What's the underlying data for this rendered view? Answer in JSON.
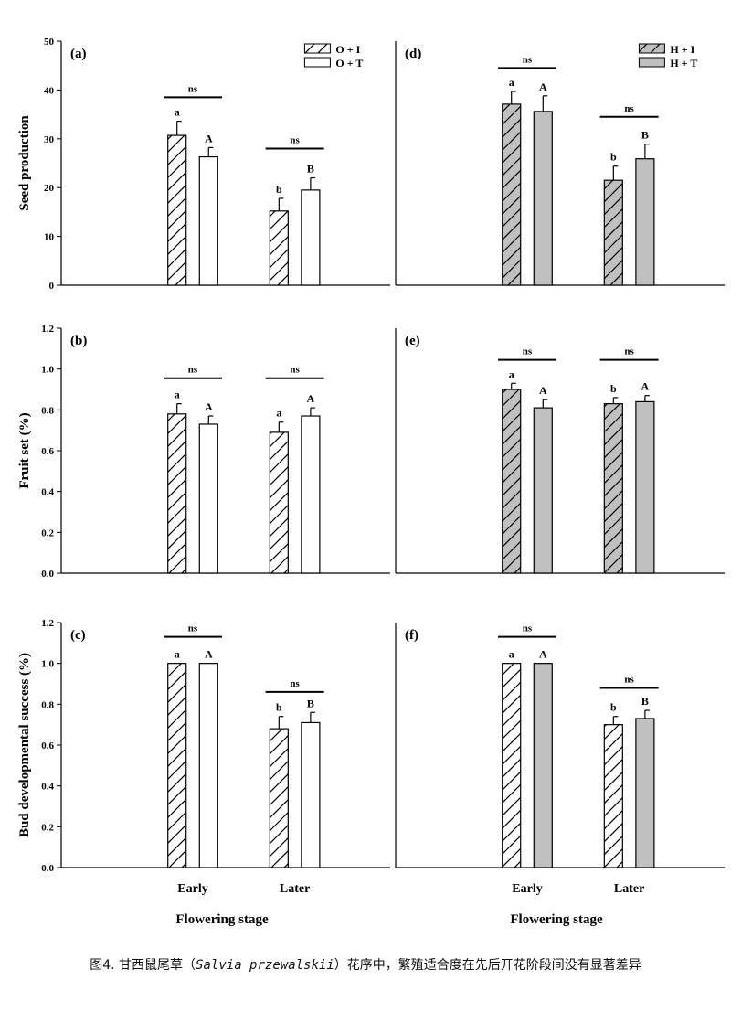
{
  "colors": {
    "gray_fill": "#c0c0c0",
    "white_fill": "#ffffff",
    "ink": "#000000"
  },
  "figure": {
    "x_axis_title": "Flowering stage",
    "caption": {
      "prefix": "图4. 甘西鼠尾草（",
      "latin": "Salvia przewalskii",
      "suffix": "）花序中，繁殖适合度在先后开花阶段间没有显著差异"
    }
  },
  "chart_data": [
    {
      "panel": "(a)",
      "type": "bar",
      "ylabel": "Seed production",
      "ylim": [
        0,
        50
      ],
      "yticks": [
        "0",
        "10",
        "20",
        "30",
        "40",
        "50"
      ],
      "yticks_values": [
        0,
        10,
        20,
        30,
        40,
        50
      ],
      "categories": [
        "Early",
        "Later"
      ],
      "series": [
        {
          "name": "O + I",
          "fill": "white",
          "hatch": true,
          "values": [
            30.7,
            15.2
          ],
          "errors": [
            2.9,
            2.6
          ],
          "letters": [
            "a",
            "b"
          ]
        },
        {
          "name": "O + T",
          "fill": "white",
          "hatch": false,
          "values": [
            26.3,
            19.5
          ],
          "errors": [
            1.9,
            2.5
          ],
          "letters": [
            "A",
            "B"
          ]
        }
      ],
      "brackets": [
        {
          "group": 0,
          "label": "ns",
          "at": 38.5
        },
        {
          "group": 1,
          "label": "ns",
          "at": 28.0
        }
      ]
    },
    {
      "panel": "(b)",
      "type": "bar",
      "ylabel": "Fruit set (%)",
      "ylim": [
        0,
        1.2
      ],
      "yticks": [
        "0.0",
        "0.2",
        "0.4",
        "0.6",
        "0.8",
        "1.0",
        "1.2"
      ],
      "yticks_values": [
        0,
        0.2,
        0.4,
        0.6,
        0.8,
        1.0,
        1.2
      ],
      "categories": [
        "Early",
        "Later"
      ],
      "series": [
        {
          "name": "O + I",
          "fill": "white",
          "hatch": true,
          "values": [
            0.78,
            0.69
          ],
          "errors": [
            0.05,
            0.05
          ],
          "letters": [
            "a",
            "a"
          ]
        },
        {
          "name": "O + T",
          "fill": "white",
          "hatch": false,
          "values": [
            0.73,
            0.77
          ],
          "errors": [
            0.04,
            0.04
          ],
          "letters": [
            "A",
            "A"
          ]
        }
      ],
      "brackets": [
        {
          "group": 0,
          "label": "ns",
          "at": 0.955
        },
        {
          "group": 1,
          "label": "ns",
          "at": 0.955
        }
      ]
    },
    {
      "panel": "(c)",
      "type": "bar",
      "ylabel": "Bud developmental success (%)",
      "ylim": [
        0,
        1.2
      ],
      "yticks": [
        "0.0",
        "0.2",
        "0.4",
        "0.6",
        "0.8",
        "1.0",
        "1.2"
      ],
      "yticks_values": [
        0,
        0.2,
        0.4,
        0.6,
        0.8,
        1.0,
        1.2
      ],
      "categories": [
        "Early",
        "Later"
      ],
      "show_xticks": true,
      "series": [
        {
          "name": "O + I",
          "fill": "white",
          "hatch": true,
          "values": [
            1.0,
            0.68
          ],
          "errors": [
            0.0,
            0.06
          ],
          "letters": [
            "a",
            "b"
          ]
        },
        {
          "name": "O + T",
          "fill": "white",
          "hatch": false,
          "values": [
            1.0,
            0.71
          ],
          "errors": [
            0.0,
            0.05
          ],
          "letters": [
            "A",
            "B"
          ]
        }
      ],
      "brackets": [
        {
          "group": 0,
          "label": "ns",
          "at": 1.13
        },
        {
          "group": 1,
          "label": "ns",
          "at": 0.86
        }
      ]
    },
    {
      "panel": "(d)",
      "type": "bar",
      "ylabel": "",
      "ylim": [
        0,
        50
      ],
      "yticks": [],
      "yticks_values": [],
      "categories": [
        "Early",
        "Later"
      ],
      "series": [
        {
          "name": "H + I",
          "fill": "gray",
          "hatch": true,
          "values": [
            37.1,
            21.5
          ],
          "errors": [
            2.6,
            2.9
          ],
          "letters": [
            "a",
            "b"
          ]
        },
        {
          "name": "H + T",
          "fill": "gray",
          "hatch": false,
          "values": [
            35.6,
            25.9
          ],
          "errors": [
            3.2,
            3.0
          ],
          "letters": [
            "A",
            "B"
          ]
        }
      ],
      "brackets": [
        {
          "group": 0,
          "label": "ns",
          "at": 44.5
        },
        {
          "group": 1,
          "label": "ns",
          "at": 34.5
        }
      ]
    },
    {
      "panel": "(e)",
      "type": "bar",
      "ylabel": "",
      "ylim": [
        0,
        1.2
      ],
      "yticks": [],
      "yticks_values": [],
      "categories": [
        "Early",
        "Later"
      ],
      "series": [
        {
          "name": "H + I",
          "fill": "gray",
          "hatch": true,
          "values": [
            0.9,
            0.83
          ],
          "errors": [
            0.03,
            0.03
          ],
          "letters": [
            "a",
            "b"
          ]
        },
        {
          "name": "H + T",
          "fill": "gray",
          "hatch": false,
          "values": [
            0.81,
            0.84
          ],
          "errors": [
            0.04,
            0.03
          ],
          "letters": [
            "A",
            "A"
          ]
        }
      ],
      "brackets": [
        {
          "group": 0,
          "label": "ns",
          "at": 1.045
        },
        {
          "group": 1,
          "label": "ns",
          "at": 1.045
        }
      ]
    },
    {
      "panel": "(f)",
      "type": "bar",
      "ylabel": "",
      "ylim": [
        0,
        1.2
      ],
      "yticks": [],
      "yticks_values": [],
      "categories": [
        "Early",
        "Later"
      ],
      "show_xticks": true,
      "series": [
        {
          "name": "H + I",
          "fill": "white",
          "hatch": true,
          "values": [
            1.0,
            0.7
          ],
          "errors": [
            0.0,
            0.04
          ],
          "letters": [
            "a",
            "b"
          ]
        },
        {
          "name": "H + T",
          "fill": "gray",
          "hatch": false,
          "values": [
            1.0,
            0.73
          ],
          "errors": [
            0.0,
            0.04
          ],
          "letters": [
            "A",
            "B"
          ]
        }
      ],
      "brackets": [
        {
          "group": 0,
          "label": "ns",
          "at": 1.13
        },
        {
          "group": 1,
          "label": "ns",
          "at": 0.88
        }
      ]
    }
  ]
}
